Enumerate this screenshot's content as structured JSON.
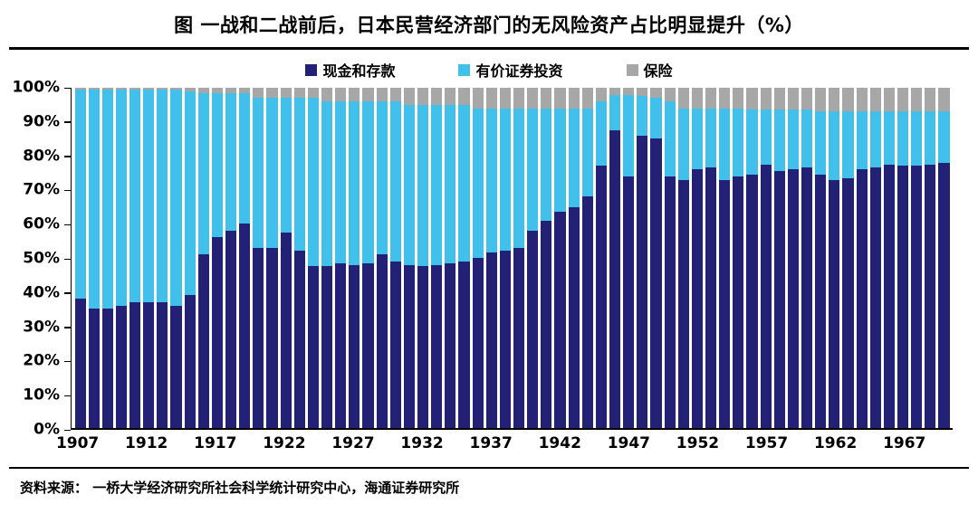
{
  "footer": {
    "source": "资料来源： 一桥大学经济研究所社会科学统计研究中心，海通证券研究所"
  },
  "chart_data": {
    "type": "bar",
    "subtype": "stacked-100-percent",
    "title": "图  一战和二战前后，日本民营经济部门的无风险资产占比明显提升（%）",
    "xlabel": "",
    "ylabel": "",
    "ylim": [
      0,
      100
    ],
    "grid": false,
    "legend_position": "top-center",
    "yticks": [
      0,
      10,
      20,
      30,
      40,
      50,
      60,
      70,
      80,
      90,
      100
    ],
    "xticks": [
      1907,
      1912,
      1917,
      1922,
      1927,
      1932,
      1937,
      1942,
      1947,
      1952,
      1957,
      1962,
      1967
    ],
    "years": [
      1907,
      1908,
      1909,
      1910,
      1911,
      1912,
      1913,
      1914,
      1915,
      1916,
      1917,
      1918,
      1919,
      1920,
      1921,
      1922,
      1923,
      1924,
      1925,
      1926,
      1927,
      1928,
      1929,
      1930,
      1931,
      1932,
      1933,
      1934,
      1935,
      1936,
      1937,
      1938,
      1939,
      1940,
      1941,
      1942,
      1943,
      1944,
      1945,
      1946,
      1947,
      1948,
      1949,
      1950,
      1951,
      1952,
      1953,
      1954,
      1955,
      1956,
      1957,
      1958,
      1959,
      1960,
      1961,
      1962,
      1963,
      1964,
      1965,
      1966,
      1967,
      1968,
      1969,
      1970
    ],
    "series": [
      {
        "name": "现金和存款",
        "color": "#232175",
        "values": [
          38,
          35,
          35,
          36,
          37,
          37,
          37,
          36,
          39,
          51,
          56,
          58,
          60,
          53,
          53,
          57.5,
          52,
          47.5,
          47.5,
          48.5,
          48,
          48.5,
          51,
          49,
          48,
          47.5,
          48,
          48.5,
          49,
          50,
          51.5,
          52,
          53,
          58,
          61,
          63.5,
          65,
          68,
          77,
          87.5,
          74,
          86,
          85,
          74,
          73,
          76,
          76.5,
          73,
          74,
          74.5,
          77.5,
          75.5,
          76,
          76.5,
          74.5,
          73,
          73.5,
          76,
          76.5,
          77.5,
          77,
          77,
          77.5,
          78
        ]
      },
      {
        "name": "有价证券投资",
        "color": "#41C0EB",
        "values": [
          61.5,
          64.5,
          64.5,
          63.5,
          62.5,
          62.5,
          62.5,
          63.5,
          60,
          47.5,
          42.5,
          40.5,
          38.5,
          44,
          44,
          39.5,
          45,
          49.5,
          48.5,
          47.5,
          48,
          47.5,
          45,
          47,
          47,
          47.5,
          47,
          46.5,
          46,
          44,
          42.5,
          42,
          41,
          36,
          33,
          30.5,
          29,
          26,
          19,
          10.5,
          24,
          11.5,
          12,
          22,
          21,
          18,
          17.5,
          21,
          20,
          19,
          16,
          18,
          17.5,
          17,
          18.5,
          20,
          19.5,
          17,
          16.5,
          15.5,
          16,
          16,
          15.5,
          15
        ]
      },
      {
        "name": "保险",
        "color": "#A7A7A7",
        "values": [
          0.5,
          0.5,
          0.5,
          0.5,
          0.5,
          0.5,
          0.5,
          0.5,
          1,
          1.5,
          1.5,
          1.5,
          1.5,
          3,
          3,
          3,
          3,
          3,
          4,
          4,
          4,
          4,
          4,
          4,
          5,
          5,
          5,
          5,
          5,
          6,
          6,
          6,
          6,
          6,
          6,
          6,
          6,
          6,
          4,
          2,
          2,
          2.5,
          3,
          4,
          6,
          6,
          6,
          6,
          6,
          6.5,
          6.5,
          6.5,
          6.5,
          6.5,
          7,
          7,
          7,
          7,
          7,
          7,
          7,
          7,
          7,
          7
        ]
      }
    ]
  }
}
